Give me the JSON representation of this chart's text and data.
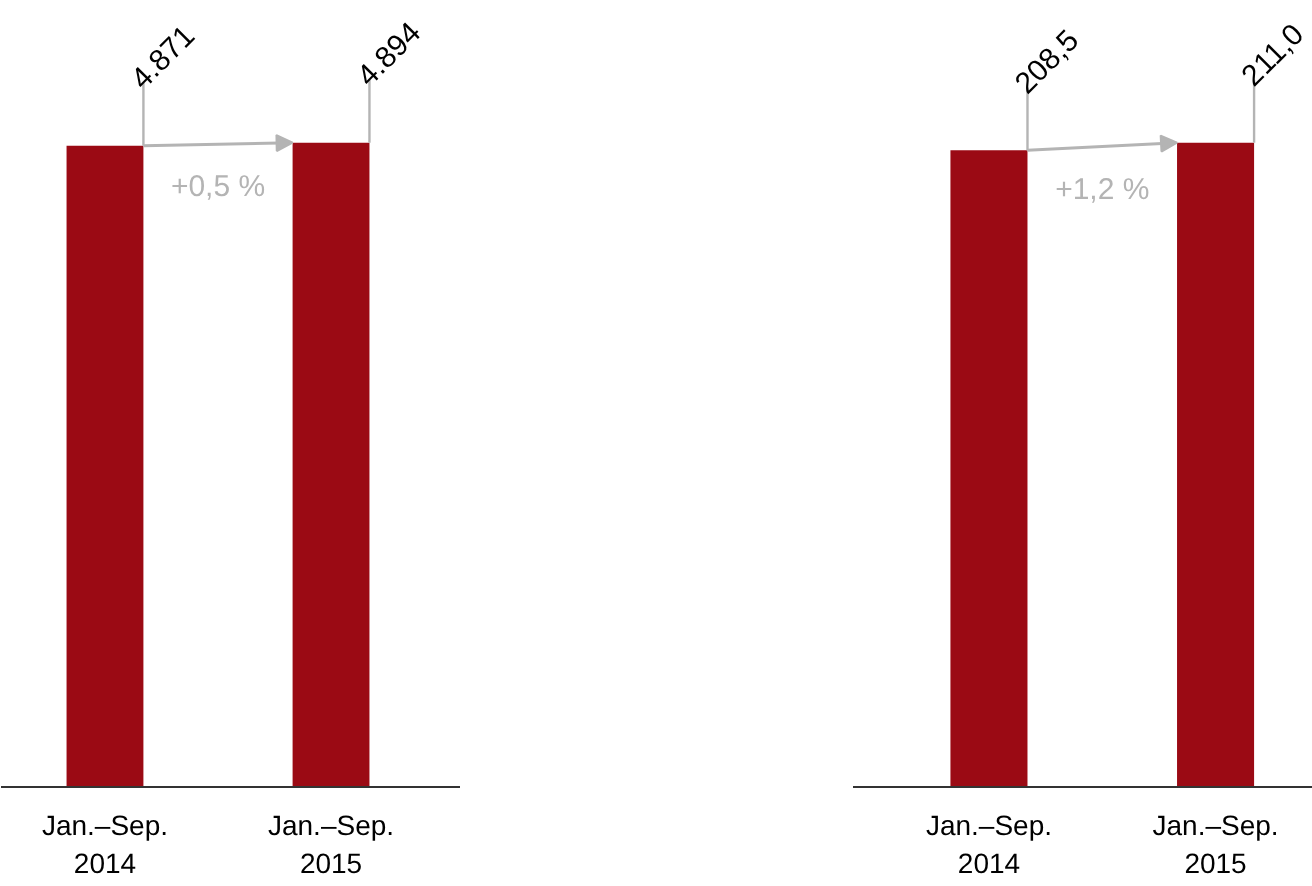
{
  "chart_data": [
    {
      "type": "bar",
      "categories": [
        "Jan.–Sep.\n2014",
        "Jan.–Sep.\n2015"
      ],
      "values": [
        4871,
        4894
      ],
      "value_labels": [
        "4.871",
        "4.894"
      ],
      "color": "#9b0a14",
      "annotations": [
        "+0,5 %"
      ],
      "tick_labels": "x",
      "grid": false
    },
    {
      "type": "bar",
      "categories": [
        "Jan.–Sep.\n2014",
        "Jan.–Sep.\n2015"
      ],
      "values": [
        208.5,
        211.0
      ],
      "value_labels": [
        "208,5",
        "211,0"
      ],
      "color": "#9b0a14",
      "annotations": [
        "+1,2 %"
      ],
      "tick_labels": "x",
      "grid": false
    }
  ]
}
